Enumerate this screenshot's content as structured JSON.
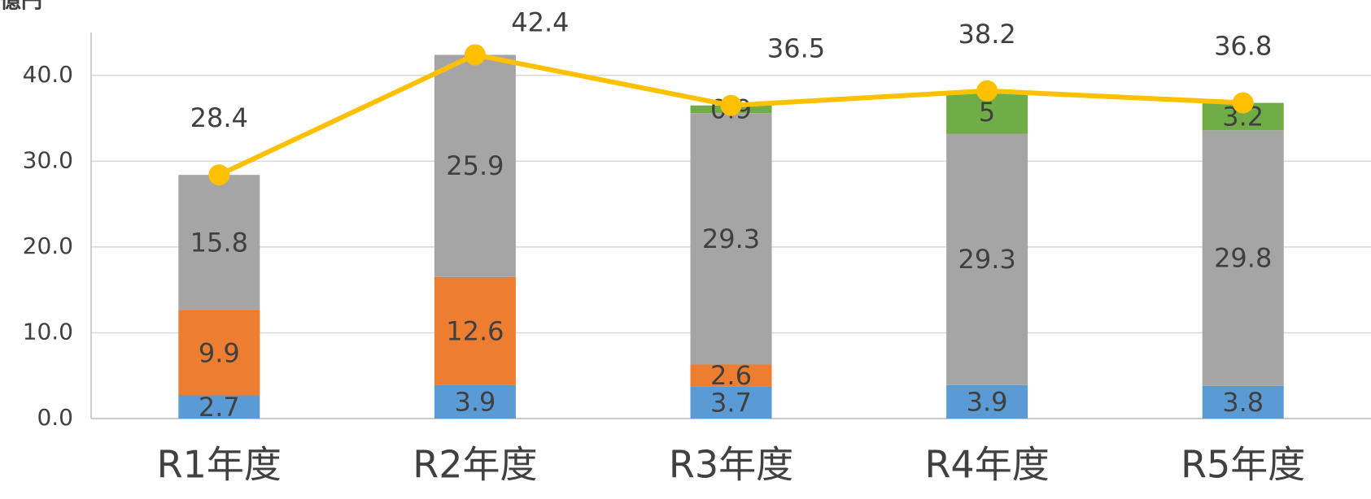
{
  "chart_data": {
    "type": "bar",
    "y_label": "億円",
    "categories": [
      "R1年度",
      "R2年度",
      "R3年度",
      "R4年度",
      "R5年度"
    ],
    "series": [
      {
        "color": "#5b9bd5",
        "values": [
          2.7,
          3.9,
          3.7,
          3.9,
          3.8
        ]
      },
      {
        "color": "#ed7d31",
        "values": [
          9.9,
          12.6,
          2.6,
          null,
          null
        ]
      },
      {
        "color": "#a5a5a5",
        "values": [
          15.8,
          25.9,
          29.3,
          29.3,
          29.8
        ]
      },
      {
        "color": "#70ad47",
        "values": [
          null,
          null,
          0.9,
          5.0,
          3.2
        ]
      }
    ],
    "line": {
      "color": "#ffc000",
      "values": [
        28.4,
        42.4,
        36.5,
        38.2,
        36.8
      ]
    },
    "ylim": [
      0,
      45
    ],
    "yticks": [
      {
        "value": 0,
        "label": "0.0"
      },
      {
        "value": 10,
        "label": "10.0"
      },
      {
        "value": 20,
        "label": "20.0"
      },
      {
        "value": 30,
        "label": "30.0"
      },
      {
        "value": 40,
        "label": "40.0"
      }
    ],
    "grid": true
  }
}
